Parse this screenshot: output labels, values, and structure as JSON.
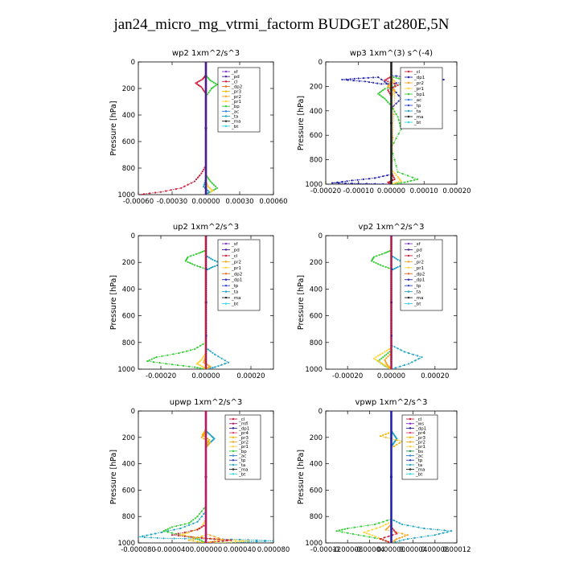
{
  "title": "jan24_micro_mg_vtrmi_factorm  BUDGET at280E,5N",
  "colors": {
    "sf": "#7f3fbf",
    "pd": "#4b1a8c",
    "cl": "#cc1f3a",
    "dp2": "#e06a1f",
    "pr3": "#f0b400",
    "pr2": "#f5a623",
    "pr1": "#ffd23a",
    "bp": "#33cc33",
    "ac": "#2d7fe0",
    "ta": "#1fa3c4",
    "tp": "#3344cc",
    "ma": "#222222",
    "bt": "#33d6e6",
    "mfl": "#b31a66",
    "dp1": "#2222aa",
    "pr4": "#e0457a",
    "ws": "#8a2be2",
    "bs": "#2e8b57"
  },
  "chart_data": [
    {
      "type": "line",
      "title": "wp2   1xm^2/s^3",
      "ylabel": "Pressure [hPa]",
      "ylim": [
        1000,
        0
      ],
      "xlim": [
        -0.0006,
        0.0006
      ],
      "xticks": [
        -0.0006,
        -0.0003,
        0,
        0.0003,
        0.0006
      ],
      "xtick_labels": [
        "-0.00060",
        "-0.00030",
        "0.00000",
        "0.00030",
        "0.00060"
      ],
      "yticks": [
        0,
        200,
        400,
        600,
        800,
        1000
      ],
      "ytick_labels": [
        "0",
        "200",
        "400",
        "600",
        "800",
        "1000"
      ],
      "legend": [
        "_sf",
        "_pd",
        "_cl",
        "_dp2",
        "_pr3",
        "_pr2",
        "_pr1",
        "_bp",
        "_ac",
        "_ta",
        "_ma",
        "_bt"
      ],
      "series": [
        {
          "key": "bp",
          "x": [
            0,
            0,
            4e-05,
            0.0001,
            5e-05,
            0,
            0,
            0,
            4e-05,
            0.0001,
            4e-05,
            0
          ],
          "y": [
            0,
            100,
            140,
            170,
            200,
            260,
            600,
            850,
            900,
            950,
            980,
            1000
          ]
        },
        {
          "key": "cl",
          "x": [
            0,
            0,
            -3e-05,
            -9e-05,
            -4e-05,
            0,
            0,
            -4e-05,
            -0.0001,
            -0.00022,
            -0.0004,
            -0.0006
          ],
          "y": [
            0,
            100,
            130,
            160,
            190,
            240,
            780,
            840,
            900,
            950,
            980,
            1000
          ]
        },
        {
          "key": "pr1",
          "x": [
            0,
            0,
            0,
            0,
            2e-05,
            6e-05,
            2e-05,
            0
          ],
          "y": [
            0,
            500,
            850,
            900,
            940,
            970,
            990,
            1000
          ]
        },
        {
          "key": "ta",
          "x": [
            0,
            0,
            -2e-05,
            3e-05,
            0
          ],
          "y": [
            0,
            880,
            940,
            980,
            1000
          ]
        },
        {
          "key": "pd",
          "x": [
            0,
            0
          ],
          "y": [
            0,
            1000
          ]
        }
      ]
    },
    {
      "type": "line",
      "title": "wp3   1xm^(3) s^(-4)",
      "ylabel": "Pressure [hPa]",
      "ylim": [
        1000,
        0
      ],
      "xlim": [
        -0.0002,
        0.0002
      ],
      "xticks": [
        -0.0002,
        -0.0001,
        0,
        0.0001,
        0.0002
      ],
      "xtick_labels": [
        "-0.00020",
        "-0.00010",
        "0.00000",
        "0.00010",
        "0.00020"
      ],
      "yticks": [
        0,
        200,
        400,
        600,
        800,
        1000
      ],
      "ytick_labels": [
        "0",
        "200",
        "400",
        "600",
        "800",
        "1000"
      ],
      "legend": [
        "_cl",
        "_dp1",
        "_pr2",
        "_pr1",
        "_bp1",
        "_ac",
        "_tp",
        "_ta",
        "_ma",
        "_bt"
      ],
      "series": [
        {
          "key": "dp1",
          "x": [
            0,
            0,
            6e-05,
            0.00016,
            0.0001,
            3e-05,
            -3e-05,
            -8e-05,
            -0.00015,
            -0.0001,
            -4e-05,
            0,
            3e-05,
            0,
            0,
            0,
            -5e-05,
            -0.00012,
            -0.00018,
            -0.0001,
            0
          ],
          "y": [
            0,
            110,
            130,
            145,
            160,
            170,
            180,
            160,
            145,
            135,
            125,
            200,
            300,
            380,
            850,
            920,
            950,
            970,
            990,
            995,
            1000
          ]
        },
        {
          "key": "bp",
          "x": [
            0,
            0,
            3e-05,
            5e-05,
            2e-05,
            -2e-05,
            -4e-05,
            -2e-05,
            0,
            2e-05,
            3e-05,
            0,
            2e-05,
            8e-05,
            4e-05,
            0
          ],
          "y": [
            0,
            120,
            140,
            160,
            190,
            220,
            260,
            300,
            360,
            450,
            550,
            700,
            900,
            960,
            985,
            1000
          ]
        },
        {
          "key": "cl",
          "x": [
            0,
            0,
            -2e-05,
            2e-05,
            -1e-05,
            0,
            0,
            1e-05,
            -1e-05,
            0
          ],
          "y": [
            0,
            120,
            150,
            190,
            230,
            280,
            900,
            960,
            985,
            1000
          ]
        },
        {
          "key": "pr1",
          "x": [
            0,
            0,
            1e-05,
            -1e-05,
            1e-05,
            0,
            0,
            2e-05,
            3e-05,
            0
          ],
          "y": [
            0,
            130,
            160,
            200,
            230,
            300,
            880,
            940,
            975,
            1000
          ]
        },
        {
          "key": "pr2",
          "x": [
            0,
            0,
            -1e-05,
            1e-05,
            0
          ],
          "y": [
            0,
            160,
            200,
            240,
            1000
          ]
        },
        {
          "key": "ma",
          "x": [
            0,
            0
          ],
          "y": [
            0,
            1000
          ]
        }
      ]
    },
    {
      "type": "line",
      "title": "up2   1xm^2/s^3",
      "ylabel": "Pressure [hPa]",
      "ylim": [
        1000,
        0
      ],
      "xlim": [
        -0.0003,
        0.0003
      ],
      "xticks": [
        -0.0002,
        0,
        0.0002
      ],
      "xtick_labels": [
        "-0.00020",
        "0.00000",
        "0.00020"
      ],
      "yticks": [
        0,
        200,
        400,
        600,
        800,
        1000
      ],
      "ytick_labels": [
        "0",
        "200",
        "400",
        "600",
        "800",
        "1000"
      ],
      "legend": [
        "_sf",
        "_pd",
        "_cl",
        "_pr2",
        "_pr1",
        "_dp2",
        "_dp1",
        "_tp",
        "_ta",
        "_ma",
        "_bt"
      ],
      "series": [
        {
          "key": "bp",
          "x": [
            0,
            0,
            -3e-05,
            -8e-05,
            -9e-05,
            -5e-05,
            0,
            0,
            -5e-05,
            -0.00012,
            -0.00022,
            -0.00026,
            -0.00015,
            -5e-05,
            0
          ],
          "y": [
            0,
            110,
            130,
            160,
            190,
            220,
            250,
            800,
            850,
            880,
            910,
            940,
            965,
            985,
            1000
          ]
        },
        {
          "key": "ta",
          "x": [
            0,
            0,
            3e-05,
            7e-05,
            3e-05,
            0,
            0,
            4e-05,
            0.0001,
            4e-05,
            0
          ],
          "y": [
            0,
            150,
            180,
            210,
            235,
            260,
            840,
            890,
            950,
            985,
            1000
          ]
        },
        {
          "key": "pr1",
          "x": [
            0,
            0,
            -2e-05,
            -4e-05,
            -1e-05,
            0
          ],
          "y": [
            0,
            880,
            930,
            960,
            985,
            1000
          ]
        },
        {
          "key": "pr2",
          "x": [
            0,
            0,
            -1e-05,
            2e-05,
            0
          ],
          "y": [
            0,
            900,
            950,
            980,
            1000
          ]
        },
        {
          "key": "cl",
          "x": [
            0,
            0
          ],
          "y": [
            0,
            1000
          ]
        },
        {
          "key": "pd",
          "x": [
            2e-06,
            2e-06
          ],
          "y": [
            0,
            1000
          ]
        }
      ]
    },
    {
      "type": "line",
      "title": "vp2   1xm^2/s^3",
      "ylabel": "Pressure [hPa]",
      "ylim": [
        1000,
        0
      ],
      "xlim": [
        -0.0003,
        0.0003
      ],
      "xticks": [
        -0.0002,
        0,
        0.0002
      ],
      "xtick_labels": [
        "-0.00020",
        "0.00000",
        "0.00020"
      ],
      "yticks": [
        0,
        200,
        400,
        600,
        800,
        1000
      ],
      "ytick_labels": [
        "0",
        "200",
        "400",
        "600",
        "800",
        "1000"
      ],
      "legend": [
        "_sf",
        "_pd",
        "_cl",
        "_pr2",
        "_pr1",
        "_dp2",
        "_dp1",
        "_tp",
        "_ta",
        "_ma",
        "_bt"
      ],
      "series": [
        {
          "key": "bp",
          "x": [
            0,
            0,
            -3e-05,
            -8e-05,
            -9e-05,
            -5e-05,
            0,
            0,
            -3e-05,
            -6e-05,
            -3e-05,
            0
          ],
          "y": [
            0,
            110,
            130,
            160,
            190,
            220,
            250,
            860,
            900,
            940,
            975,
            1000
          ]
        },
        {
          "key": "ta",
          "x": [
            0,
            0,
            3e-05,
            7e-05,
            3e-05,
            0,
            0,
            6e-05,
            0.00014,
            8e-05,
            0
          ],
          "y": [
            0,
            150,
            180,
            210,
            235,
            260,
            820,
            870,
            910,
            960,
            1000
          ]
        },
        {
          "key": "pr1",
          "x": [
            0,
            0,
            -4e-05,
            -8e-05,
            -5e-05,
            -2e-05,
            0
          ],
          "y": [
            0,
            840,
            880,
            920,
            950,
            980,
            1000
          ]
        },
        {
          "key": "pr2",
          "x": [
            0,
            0,
            -3e-05,
            -2e-05,
            0
          ],
          "y": [
            0,
            880,
            930,
            965,
            1000
          ]
        },
        {
          "key": "cl",
          "x": [
            0,
            0
          ],
          "y": [
            0,
            1000
          ]
        },
        {
          "key": "pd",
          "x": [
            2e-06,
            2e-06
          ],
          "y": [
            0,
            1000
          ]
        }
      ]
    },
    {
      "type": "line",
      "title": "upwp   1xm^2/s^3",
      "ylabel": "Pressure [hPa]",
      "ylim": [
        1000,
        0
      ],
      "xlim": [
        -8e-05,
        8e-05
      ],
      "xticks": [
        -8e-05,
        -4e-05,
        0,
        4e-05,
        8e-05
      ],
      "xtick_labels": [
        "-0.000080",
        "-0.000040",
        "0.000000",
        "0.000040",
        "0.000080"
      ],
      "yticks": [
        0,
        200,
        400,
        600,
        800,
        1000
      ],
      "ytick_labels": [
        "0",
        "200",
        "400",
        "600",
        "800",
        "1000"
      ],
      "legend": [
        "_cl",
        "_mfl",
        "_dp1",
        "_pr4",
        "_pr3",
        "_pr2",
        "_pr1",
        "_bp",
        "_ac",
        "_tp",
        "_ta",
        "_ma",
        "_bt"
      ],
      "series": [
        {
          "key": "ta",
          "x": [
            0,
            0,
            5e-06,
            1e-05,
            5e-06,
            0,
            0,
            -1e-05,
            -3e-05,
            -6e-05,
            -8e-05,
            -5e-05,
            0,
            4e-05,
            8e-05,
            4e-05,
            0
          ],
          "y": [
            0,
            150,
            180,
            210,
            240,
            270,
            760,
            840,
            890,
            930,
            955,
            965,
            970,
            975,
            985,
            995,
            1000
          ]
        },
        {
          "key": "bp",
          "x": [
            0,
            0,
            -1e-05,
            -2e-05,
            -4e-05,
            -5e-05,
            -3e-05,
            -1e-05,
            0
          ],
          "y": [
            0,
            720,
            800,
            850,
            880,
            910,
            940,
            970,
            1000
          ]
        },
        {
          "key": "pr1",
          "x": [
            0,
            0,
            -5e-06,
            -2e-05,
            -3e-05,
            -1e-05,
            2e-05,
            5e-05,
            3e-05,
            0
          ],
          "y": [
            0,
            820,
            880,
            920,
            940,
            960,
            975,
            985,
            995,
            1000
          ]
        },
        {
          "key": "cl",
          "x": [
            0,
            0,
            -1e-05,
            -4e-05,
            -1e-05,
            1e-05,
            3e-05,
            1e-05,
            0
          ],
          "y": [
            0,
            860,
            900,
            940,
            960,
            970,
            980,
            990,
            1000
          ]
        },
        {
          "key": "pr2",
          "x": [
            0,
            0,
            -5e-06,
            5e-06,
            0,
            0,
            2e-05,
            0
          ],
          "y": [
            0,
            160,
            200,
            240,
            280,
            930,
            975,
            1000
          ]
        },
        {
          "key": "pr3",
          "x": [
            0,
            0,
            -4e-06,
            4e-06,
            0,
            0,
            -2e-05,
            0
          ],
          "y": [
            0,
            140,
            180,
            220,
            260,
            940,
            980,
            1000
          ]
        },
        {
          "key": "mfl",
          "x": [
            0,
            0
          ],
          "y": [
            0,
            1000
          ]
        }
      ]
    },
    {
      "type": "line",
      "title": "vpwp   1xm^2/s^3",
      "ylabel": "Pressure [hPa]",
      "ylim": [
        1000,
        0
      ],
      "xlim": [
        -0.00012,
        0.00012
      ],
      "xticks": [
        -0.00012,
        -8e-05,
        -4e-05,
        0,
        4e-05,
        8e-05,
        0.00012
      ],
      "xtick_labels": [
        "-0.00012",
        "-0.00008",
        "-0.00004",
        "0.00000",
        "0.00004",
        "0.00008",
        "0.00012"
      ],
      "yticks": [
        0,
        200,
        400,
        600,
        800,
        1000
      ],
      "ytick_labels": [
        "0",
        "200",
        "400",
        "600",
        "800",
        "1000"
      ],
      "legend": [
        "_cl",
        "_ws",
        "_dp1",
        "_pr4",
        "_pr3",
        "_pr2",
        "_pr1",
        "_bs",
        "_ac",
        "_tp",
        "_ta",
        "_ma",
        "_bt"
      ],
      "series": [
        {
          "key": "ta",
          "x": [
            0,
            0,
            5e-06,
            1e-05,
            5e-06,
            0,
            0,
            2e-05,
            6e-05,
            0.00011,
            8e-05,
            3e-05,
            0
          ],
          "y": [
            0,
            150,
            180,
            210,
            240,
            270,
            820,
            860,
            890,
            910,
            940,
            970,
            1000
          ]
        },
        {
          "key": "bp",
          "x": [
            0,
            0,
            -3e-05,
            -8e-05,
            -0.0001,
            -6e-05,
            -2e-05,
            0
          ],
          "y": [
            0,
            820,
            860,
            890,
            910,
            940,
            970,
            1000
          ]
        },
        {
          "key": "pr1",
          "x": [
            0,
            0,
            -2e-05,
            -5e-05,
            -3e-05,
            0
          ],
          "y": [
            0,
            840,
            880,
            920,
            950,
            1000
          ]
        },
        {
          "key": "pr2",
          "x": [
            0,
            0,
            -1e-05,
            3e-05,
            1e-05,
            0
          ],
          "y": [
            0,
            860,
            900,
            940,
            970,
            1000
          ]
        },
        {
          "key": "pr3",
          "x": [
            0,
            0,
            -2e-05,
            2e-05,
            0
          ],
          "y": [
            0,
            160,
            190,
            230,
            280
          ]
        },
        {
          "key": "cl",
          "x": [
            0,
            0,
            1e-05,
            -2e-05,
            0
          ],
          "y": [
            0,
            880,
            930,
            970,
            1000
          ]
        },
        {
          "key": "dp1",
          "x": [
            0,
            0
          ],
          "y": [
            0,
            1000
          ]
        }
      ]
    }
  ]
}
